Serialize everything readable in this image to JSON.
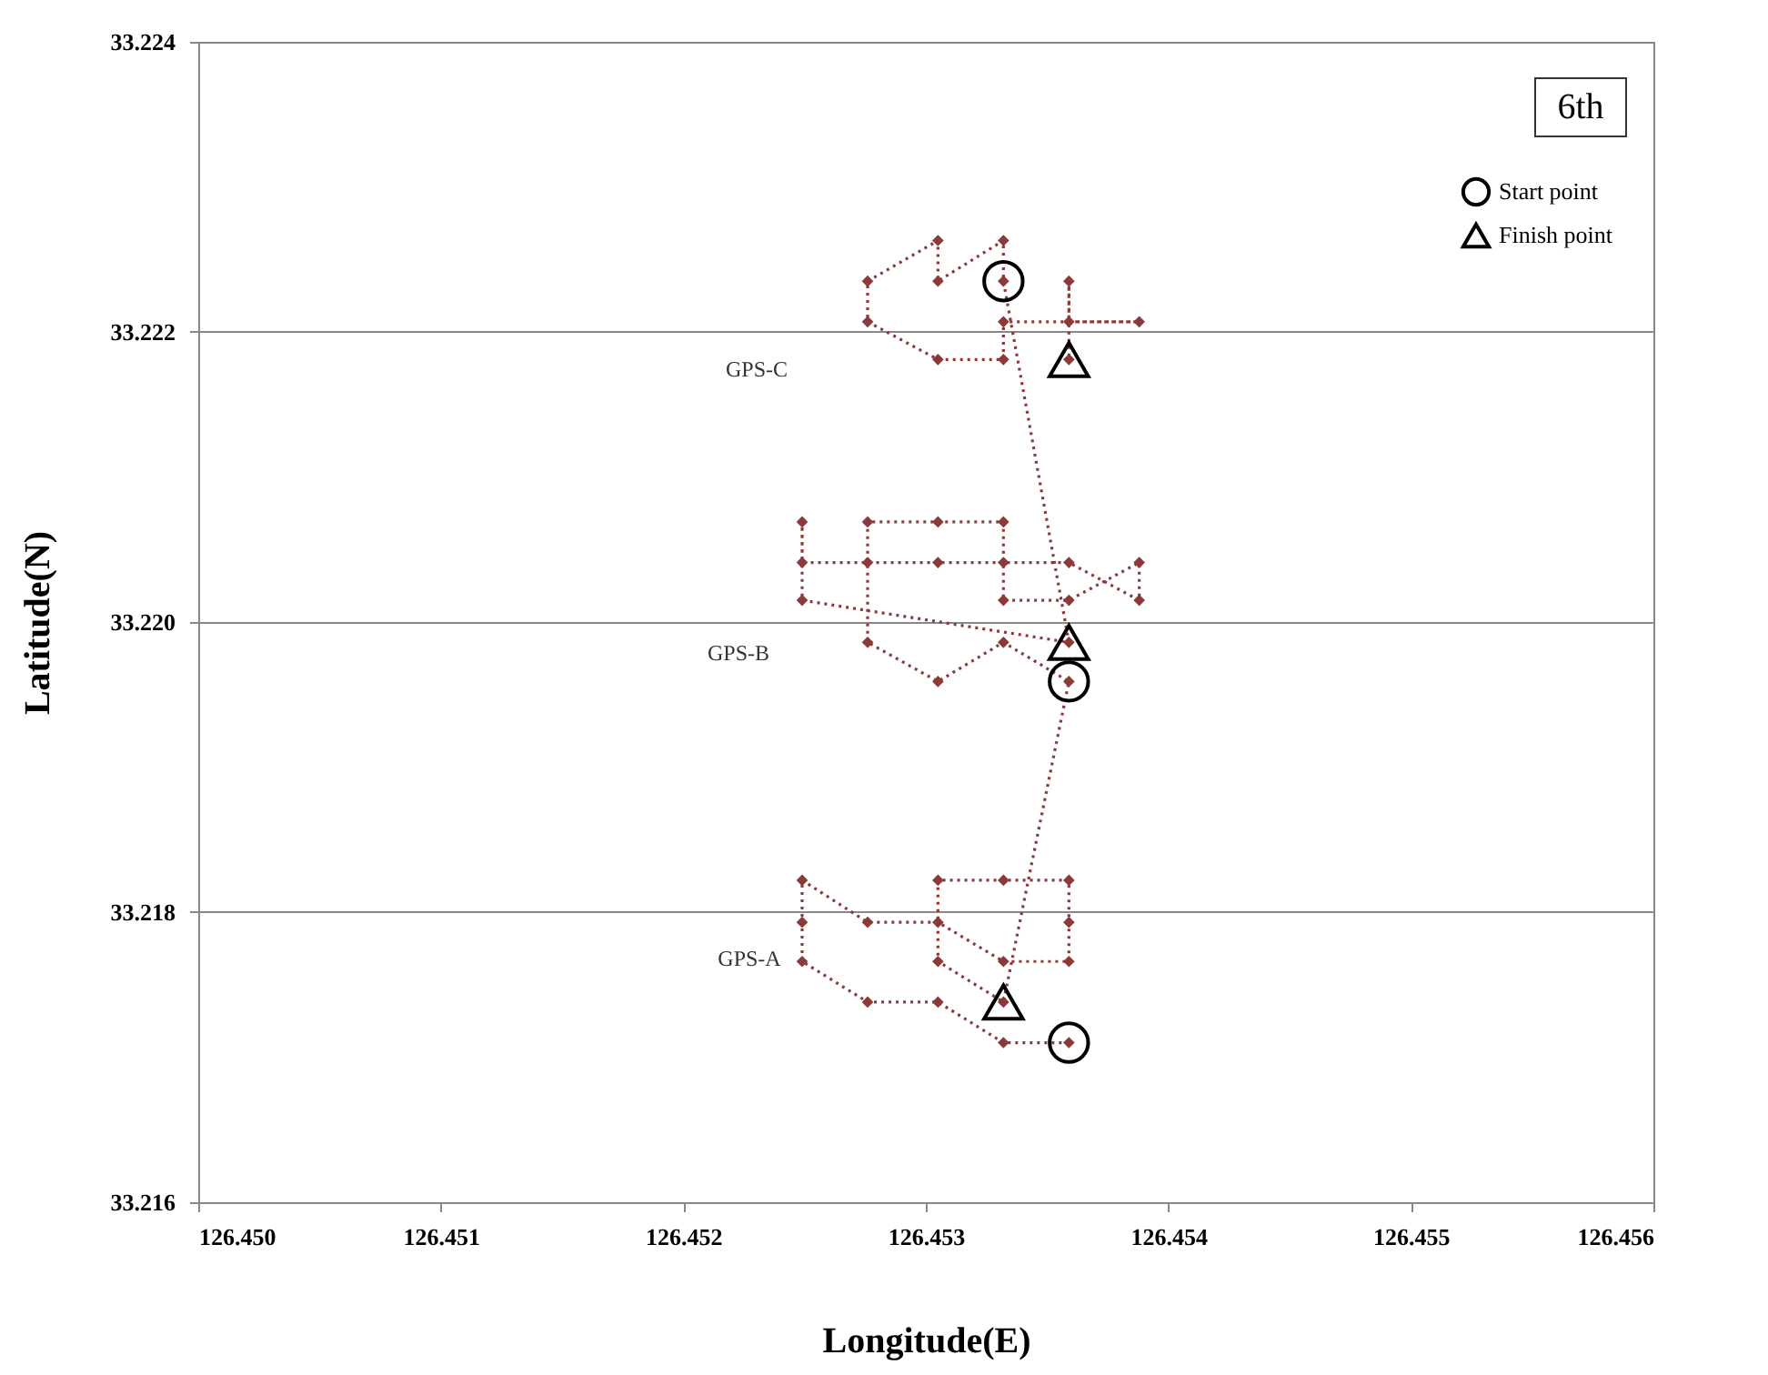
{
  "chart_data": {
    "type": "line",
    "xlabel": "Longitude(E)",
    "ylabel": "Latitude(N)",
    "legend_title": "6th",
    "xlim": [
      126.45,
      126.456
    ],
    "xticks": [
      {
        "value": 126.45,
        "label": "126.450"
      },
      126.451,
      126.452,
      126.453,
      126.454,
      126.455,
      126.456
    ],
    "ylim": [
      33.216,
      33.224
    ],
    "yticks": [
      33.216,
      33.218,
      {
        "value": 33.22,
        "label": "33.220"
      },
      33.222,
      33.224
    ],
    "grid": "y",
    "legend": "top right",
    "series": [
      {
        "color": "#8b3a3a",
        "marker": "diamond",
        "line_style": "dotted",
        "x": [
          126.45359,
          126.45332,
          126.45305,
          126.45276,
          126.45249,
          126.45249,
          126.45249,
          126.45276,
          126.45305,
          126.45332,
          126.45359,
          126.45359,
          126.45359,
          126.45332,
          126.45305,
          126.45305,
          126.45332,
          126.45359,
          126.45332,
          126.45305,
          126.45276,
          126.45276,
          126.45276,
          126.45305,
          126.45332,
          126.45332,
          126.45332,
          126.45359,
          126.45388,
          126.45388,
          126.45359,
          126.45305,
          126.45249,
          126.45249,
          126.45249,
          126.45359,
          126.45332,
          126.45332,
          126.45305,
          126.45305,
          126.45276,
          126.45276,
          126.45305,
          126.45332,
          126.45332,
          126.45388,
          126.45359,
          126.45359,
          126.45359
        ],
        "values": [
          33.2171,
          33.2171,
          33.21738,
          33.21738,
          33.21766,
          33.21793,
          33.21822,
          33.21793,
          33.21793,
          33.21766,
          33.21766,
          33.21793,
          33.21822,
          33.21822,
          33.21822,
          33.21766,
          33.21738,
          33.21959,
          33.21986,
          33.21959,
          33.21986,
          33.22041,
          33.22069,
          33.22069,
          33.22069,
          33.22041,
          33.22015,
          33.22015,
          33.22041,
          33.22015,
          33.22041,
          33.22041,
          33.22041,
          33.22069,
          33.22015,
          33.21986,
          33.22235,
          33.22263,
          33.22235,
          33.22263,
          33.22235,
          33.22207,
          33.22181,
          33.22181,
          33.22207,
          33.22207,
          33.22207,
          33.22235,
          33.22181
        ]
      },
      {
        "type": "scatter",
        "name": "Start point",
        "color": "#000000",
        "marker": "circle",
        "x": [
          126.45359,
          126.45359,
          126.45332
        ],
        "values": [
          33.2171,
          33.21959,
          33.22235
        ]
      },
      {
        "type": "scatter",
        "name": "Finish point",
        "color": "#000000",
        "marker": "triangle",
        "x": [
          126.45332,
          126.45359,
          126.45359
        ],
        "values": [
          33.21738,
          33.21986,
          33.22181
        ]
      }
    ],
    "annotations": [
      "GPS-A",
      "GPS-B",
      "GPS-C"
    ]
  }
}
